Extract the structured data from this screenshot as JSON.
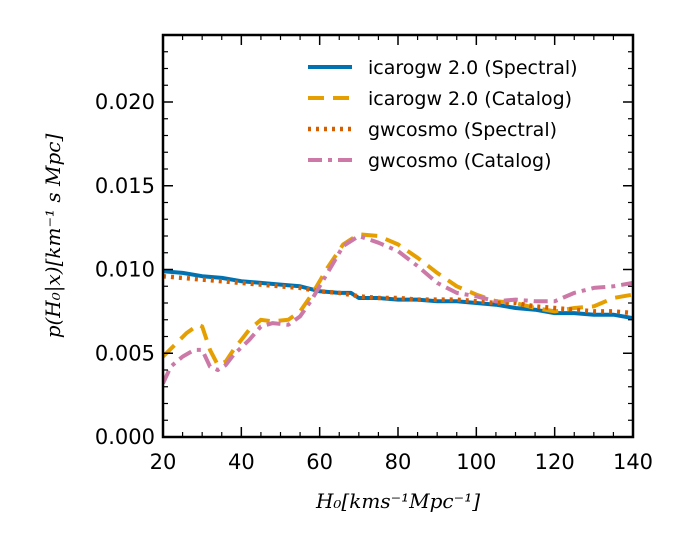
{
  "chart_data": {
    "type": "line",
    "title": "",
    "xlabel": "H₀[kms⁻¹Mpc⁻¹]",
    "ylabel": "p(H₀|x)[km⁻¹ s Mpc]",
    "xlim": [
      20,
      140
    ],
    "ylim": [
      0,
      0.024
    ],
    "x_ticks": [
      "20",
      "40",
      "60",
      "80",
      "100",
      "120",
      "140"
    ],
    "y_ticks": [
      "0.000",
      "0.005",
      "0.010",
      "0.015",
      "0.020"
    ],
    "grid": false,
    "legend_position": "top-right",
    "series": [
      {
        "name": "icarogw 2.0 (Spectral)",
        "color": "#0072B2",
        "style": "solid",
        "x": [
          20,
          25,
          30,
          35,
          40,
          45,
          50,
          55,
          60,
          65,
          68,
          70,
          75,
          80,
          85,
          90,
          95,
          100,
          105,
          110,
          115,
          120,
          125,
          130,
          135,
          140
        ],
        "y": [
          0.0099,
          0.0098,
          0.0096,
          0.0095,
          0.0093,
          0.0092,
          0.0091,
          0.009,
          0.0087,
          0.0086,
          0.0086,
          0.0083,
          0.0083,
          0.0082,
          0.0082,
          0.0081,
          0.0081,
          0.008,
          0.0079,
          0.0077,
          0.0076,
          0.0074,
          0.0074,
          0.0073,
          0.0073,
          0.0071
        ]
      },
      {
        "name": "icarogw 2.0 (Catalog)",
        "color": "#E69F00",
        "style": "dashed",
        "x": [
          20,
          23,
          26,
          29,
          30,
          32,
          34,
          36,
          38,
          42,
          45,
          48,
          52,
          55,
          58,
          62,
          66,
          70,
          75,
          80,
          85,
          90,
          95,
          100,
          105,
          110,
          115,
          120,
          125,
          130,
          135,
          140
        ],
        "y": [
          0.0048,
          0.0055,
          0.0062,
          0.0067,
          0.0066,
          0.0052,
          0.0043,
          0.0045,
          0.0052,
          0.0064,
          0.007,
          0.0069,
          0.007,
          0.0075,
          0.0085,
          0.0101,
          0.0115,
          0.0121,
          0.012,
          0.0115,
          0.0107,
          0.0098,
          0.009,
          0.0085,
          0.0081,
          0.008,
          0.0077,
          0.0075,
          0.0077,
          0.0078,
          0.0083,
          0.0085
        ]
      },
      {
        "name": "gwcosmo (Spectral)",
        "color": "#D55E00",
        "style": "dotted",
        "x": [
          20,
          25,
          30,
          35,
          40,
          45,
          50,
          55,
          60,
          65,
          70,
          75,
          80,
          85,
          90,
          95,
          100,
          105,
          110,
          115,
          120,
          125,
          130,
          135,
          140
        ],
        "y": [
          0.0096,
          0.0095,
          0.0094,
          0.0093,
          0.0092,
          0.0091,
          0.009,
          0.0089,
          0.0087,
          0.0086,
          0.0084,
          0.0083,
          0.0083,
          0.0082,
          0.0082,
          0.0082,
          0.0081,
          0.008,
          0.008,
          0.0078,
          0.0077,
          0.0076,
          0.0075,
          0.0075,
          0.0074
        ]
      },
      {
        "name": "gwcosmo (Catalog)",
        "color": "#CC79A7",
        "style": "dashdot",
        "x": [
          20,
          22,
          25,
          28,
          30,
          32,
          34,
          36,
          38,
          42,
          45,
          48,
          52,
          55,
          58,
          62,
          66,
          70,
          75,
          80,
          85,
          90,
          95,
          100,
          105,
          110,
          115,
          120,
          125,
          130,
          135,
          140
        ],
        "y": [
          0.0032,
          0.0042,
          0.0048,
          0.0052,
          0.0052,
          0.0042,
          0.004,
          0.0043,
          0.0049,
          0.0058,
          0.0066,
          0.0068,
          0.0067,
          0.0072,
          0.0082,
          0.0098,
          0.0114,
          0.012,
          0.0116,
          0.0111,
          0.0102,
          0.0092,
          0.0086,
          0.0084,
          0.0081,
          0.0082,
          0.0081,
          0.0081,
          0.0086,
          0.0089,
          0.009,
          0.0092
        ]
      }
    ]
  }
}
